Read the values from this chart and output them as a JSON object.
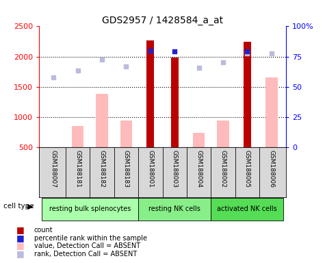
{
  "title": "GDS2957 / 1428584_a_at",
  "samples": [
    "GSM188007",
    "GSM188181",
    "GSM188182",
    "GSM188183",
    "GSM188001",
    "GSM188003",
    "GSM188004",
    "GSM188002",
    "GSM188005",
    "GSM188006"
  ],
  "groups": [
    {
      "label": "resting bulk splenocytes",
      "start": 0,
      "end": 4
    },
    {
      "label": "resting NK cells",
      "start": 4,
      "end": 7
    },
    {
      "label": "activated NK cells",
      "start": 7,
      "end": 10
    }
  ],
  "count_values": [
    null,
    null,
    null,
    null,
    2270,
    1980,
    null,
    null,
    2240,
    null
  ],
  "rank_values": [
    null,
    null,
    null,
    null,
    2100,
    2090,
    null,
    null,
    2090,
    null
  ],
  "absent_value_bars": [
    null,
    850,
    1380,
    940,
    null,
    null,
    740,
    940,
    null,
    1650
  ],
  "absent_rank_dots": [
    1650,
    1770,
    1950,
    1840,
    null,
    null,
    1810,
    1910,
    null,
    null
  ],
  "absent_rank_dots2": [
    null,
    null,
    null,
    null,
    null,
    null,
    null,
    null,
    2050,
    2050
  ],
  "ylim_left": [
    500,
    2500
  ],
  "ylim_right": [
    0,
    100
  ],
  "yticks_left": [
    500,
    1000,
    1500,
    2000,
    2500
  ],
  "yticks_right": [
    0,
    25,
    50,
    75,
    100
  ],
  "ytick_right_labels": [
    "0",
    "25",
    "50",
    "75",
    "100%"
  ],
  "grid_values": [
    1000,
    1500,
    2000
  ],
  "count_color": "#bb0000",
  "rank_color": "#2222cc",
  "absent_value_color": "#ffbbbb",
  "absent_rank_color": "#bbbbdd",
  "sample_bg": "#d8d8d8",
  "group_colors": [
    "#aaffaa",
    "#88ee88",
    "#55dd55"
  ],
  "plot_bg": "#ffffff"
}
